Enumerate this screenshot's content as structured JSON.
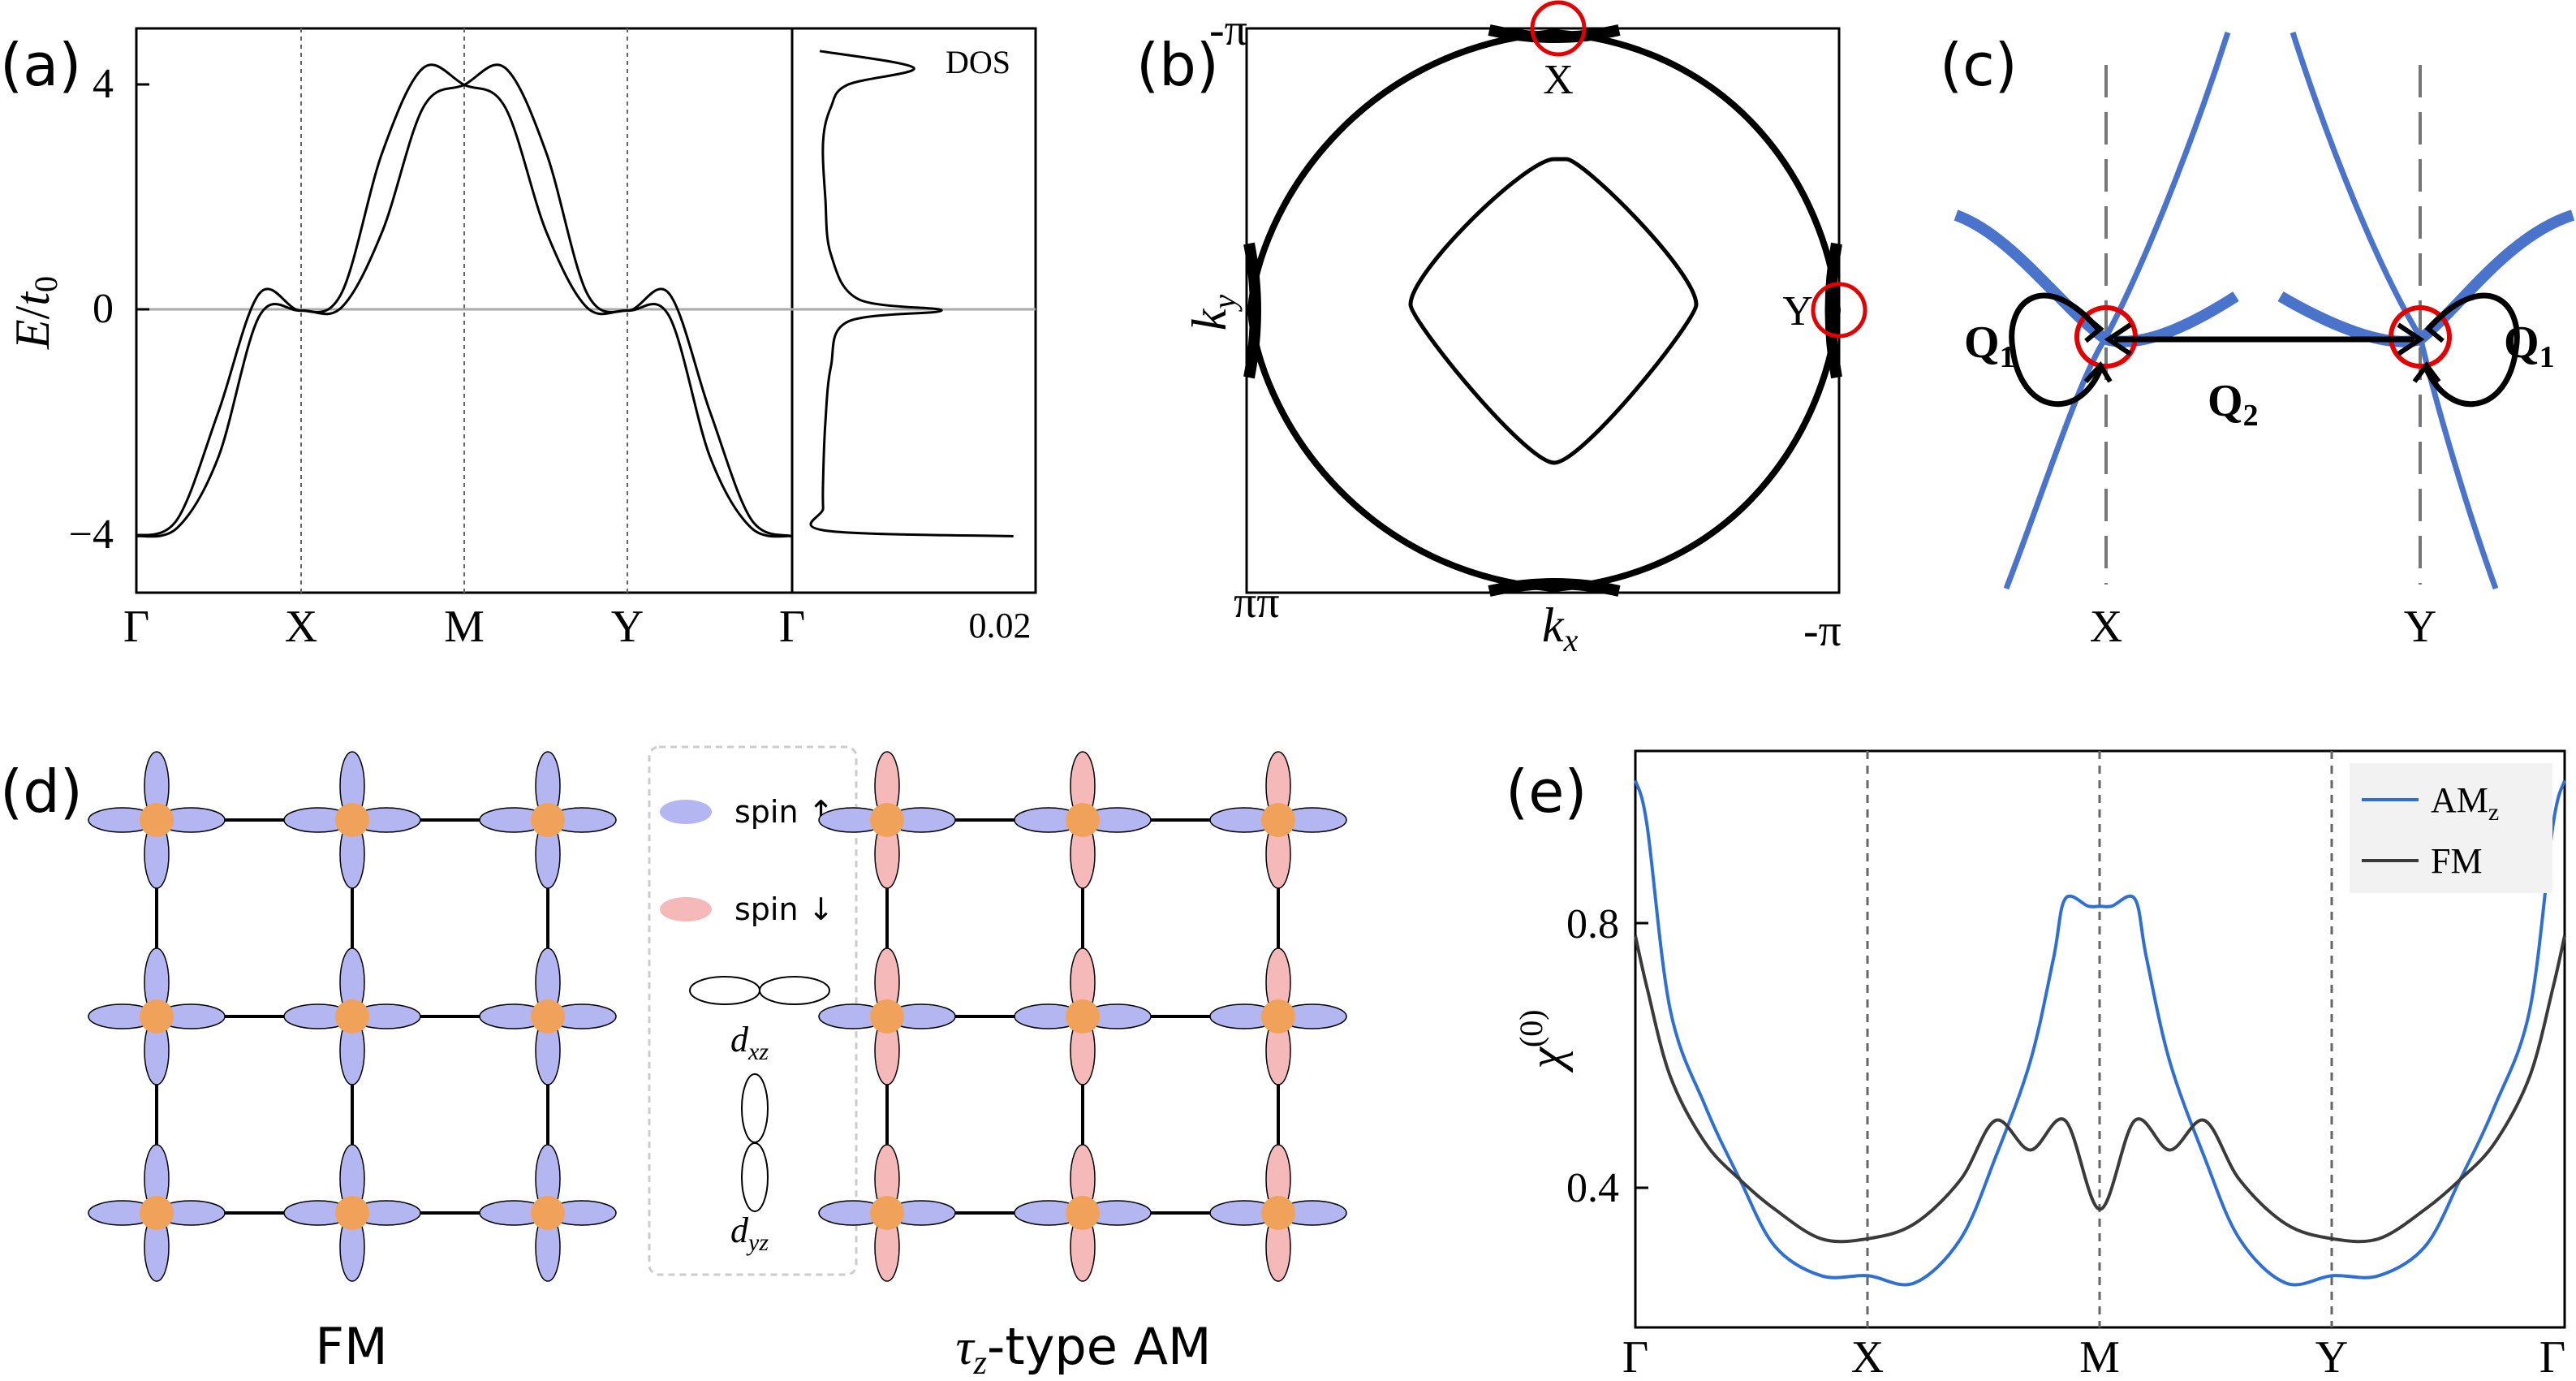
{
  "colors": {
    "ink": "#000000",
    "zero_line": "#aaaaaa",
    "blue_band": "#4a74cc",
    "am_line": "#2e6fd6",
    "fm_line": "#3a3a3a",
    "spin_up": "#b4b6f2",
    "spin_down": "#f5b9b9",
    "atom": "#f0a25a",
    "circle": "#e30000"
  },
  "panel_a": {
    "label": "(a)",
    "ylabel_var": "E",
    "ylabel_div": "/",
    "ylabel_sub_var": "t",
    "ylabel_sub": "0",
    "y_ticks": [
      "4",
      "0",
      "−4"
    ],
    "x_ticks": [
      "Γ",
      "X",
      "M",
      "Y",
      "Γ"
    ],
    "dos_label": "DOS",
    "dos_ticks": [
      "Γ",
      "0.02"
    ],
    "chart_data": {
      "type": "line",
      "xlabel": "",
      "ylabel": "E/t0",
      "ylim": [
        -5,
        5
      ],
      "k_path": [
        "Γ",
        "X",
        "M",
        "Y",
        "Γ"
      ],
      "series": [
        {
          "k": [
            0,
            0.25,
            0.5,
            0.75,
            1,
            1.25,
            1.5,
            1.75,
            2,
            2.25,
            2.5,
            2.75,
            3,
            3.25,
            3.5,
            3.75,
            4
          ],
          "E": [
            -4,
            -3.7,
            -1.8,
            0.3,
            0,
            0.3,
            2.8,
            4.3,
            4,
            3.6,
            1.4,
            0.05,
            0,
            -0.1,
            -2.6,
            -3.85,
            -4
          ]
        },
        {
          "k": [
            0,
            0.25,
            0.5,
            0.75,
            1,
            1.25,
            1.5,
            1.75,
            2,
            2.25,
            2.5,
            2.75,
            3,
            3.25,
            3.5,
            3.75,
            4
          ],
          "E": [
            -4,
            -3.85,
            -2.6,
            -0.1,
            0,
            0.05,
            1.4,
            3.6,
            4,
            4.3,
            2.8,
            0.3,
            0,
            0.3,
            -1.8,
            -3.7,
            -4
          ]
        }
      ],
      "dos_xlim": [
        0,
        0.022
      ],
      "dos": {
        "E": [
          -4,
          -3.9,
          -3.5,
          -3,
          -2,
          -1,
          -0.2,
          0,
          0.2,
          1,
          2,
          3,
          3.6,
          4.0,
          4.3,
          4.6
        ],
        "value": [
          0.02,
          0.003,
          0.0028,
          0.0028,
          0.003,
          0.0035,
          0.005,
          0.0135,
          0.006,
          0.0035,
          0.003,
          0.0028,
          0.0035,
          0.005,
          0.011,
          0.0025
        ]
      }
    }
  },
  "panel_b": {
    "label": "(b)",
    "top_left": "-π",
    "bottom_left": "ππ",
    "bottom_right": "-π",
    "ky_var": "k",
    "ky_sub": "y",
    "kx_var": "k",
    "kx_sub": "x",
    "point_x": "X",
    "point_y": "Y"
  },
  "panel_c": {
    "label": "(c)",
    "q1_left_var": "Q",
    "q1_left_sub": "1",
    "q2_var": "Q",
    "q2_sub": "2",
    "q1_right_var": "Q",
    "q1_right_sub": "1",
    "x_label": "X",
    "y_label": "Y"
  },
  "panel_d": {
    "label": "(d)",
    "fm_caption": "FM",
    "am_prefix": "τ",
    "am_prefix_sub": "z",
    "am_suffix": "-type AM",
    "legend": {
      "spin_up": "spin ↑",
      "spin_down": "spin ↓",
      "dxz_var": "d",
      "dxz_sub": "xz",
      "dyz_var": "d",
      "dyz_sub": "yz"
    }
  },
  "panel_e": {
    "label": "(e)",
    "ylabel_var": "χ",
    "ylabel_sup": "(0)",
    "y_ticks": [
      "0.8",
      "0.4"
    ],
    "x_ticks": [
      "Γ",
      "X",
      "M",
      "Y",
      "Γ"
    ],
    "legend_am": "AM",
    "legend_am_sub": "z",
    "legend_fm": "FM",
    "chart_data": {
      "type": "line",
      "xlabel": "",
      "ylabel": "χ(0)",
      "ylim": [
        0.22,
        1.0
      ],
      "k_path": [
        "Γ",
        "X",
        "M",
        "Y",
        "Γ"
      ],
      "series": [
        {
          "name": "AMz",
          "k": [
            0,
            0.05,
            0.15,
            0.3,
            0.45,
            0.6,
            0.8,
            1.0,
            1.2,
            1.4,
            1.55,
            1.7,
            1.8,
            1.85,
            1.95,
            2.0,
            2.05,
            2.15,
            2.2,
            2.3,
            2.45,
            2.6,
            2.8,
            3.0,
            3.2,
            3.4,
            3.55,
            3.7,
            3.85,
            3.95,
            4.0
          ],
          "values": [
            0.96,
            0.9,
            0.65,
            0.52,
            0.42,
            0.33,
            0.29,
            0.29,
            0.28,
            0.34,
            0.45,
            0.58,
            0.72,
            0.8,
            0.79,
            0.79,
            0.79,
            0.8,
            0.72,
            0.58,
            0.45,
            0.34,
            0.28,
            0.29,
            0.29,
            0.33,
            0.42,
            0.52,
            0.65,
            0.9,
            0.96
          ]
        },
        {
          "name": "FM",
          "k": [
            0,
            0.05,
            0.15,
            0.3,
            0.45,
            0.6,
            0.8,
            1.0,
            1.2,
            1.4,
            1.55,
            1.7,
            1.85,
            2.0,
            2.15,
            2.3,
            2.45,
            2.6,
            2.8,
            3.0,
            3.2,
            3.4,
            3.55,
            3.7,
            3.85,
            3.95,
            4.0
          ],
          "values": [
            0.75,
            0.68,
            0.56,
            0.47,
            0.42,
            0.38,
            0.34,
            0.34,
            0.36,
            0.42,
            0.5,
            0.46,
            0.5,
            0.38,
            0.5,
            0.46,
            0.5,
            0.42,
            0.36,
            0.34,
            0.34,
            0.38,
            0.42,
            0.47,
            0.56,
            0.68,
            0.75
          ]
        }
      ]
    }
  }
}
